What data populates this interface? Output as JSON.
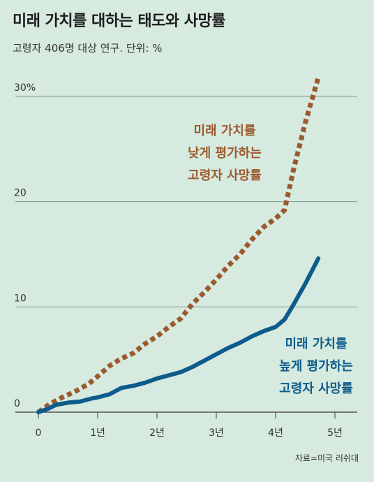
{
  "title": "미래 가치를 대하는 태도와 사망률",
  "subtitle": "고령자 406명 대상 연구. 단위: %",
  "source": "자료=미국 러쉬대",
  "colors": {
    "background": "#d6eadf",
    "low": "#9b5a2e",
    "high": "#0e5b8c",
    "grid": "#7f9a8d"
  },
  "chart_data": {
    "type": "line",
    "title": "미래 가치를 대하는 태도와 사망률",
    "subtitle": "고령자 406명 대상 연구. 단위: %",
    "xlabel": "",
    "ylabel": "",
    "xlim": [
      0,
      5.2
    ],
    "ylim": [
      0,
      31.5
    ],
    "x_ticks": [
      0,
      1,
      2,
      3,
      4,
      5
    ],
    "x_tick_labels": [
      "0",
      "1년",
      "2년",
      "3년",
      "4년",
      "5년"
    ],
    "y_ticks": [
      0,
      10,
      20,
      30
    ],
    "y_tick_labels": [
      "0",
      "10",
      "20",
      "30%"
    ],
    "grid": true,
    "series": [
      {
        "name": "미래 가치를 낮게 평가하는 고령자 사망률",
        "label_lines": [
          "미래 가치를",
          "낮게 평가하는",
          "고령자 사망률"
        ],
        "style": "dotted",
        "color": "#9b5a2e",
        "points": [
          [
            0,
            0
          ],
          [
            0.2,
            0.8
          ],
          [
            0.4,
            1.4
          ],
          [
            0.6,
            1.9
          ],
          [
            0.85,
            2.7
          ],
          [
            1.0,
            3.4
          ],
          [
            1.2,
            4.4
          ],
          [
            1.4,
            5.1
          ],
          [
            1.6,
            5.6
          ],
          [
            1.8,
            6.5
          ],
          [
            2.0,
            7.2
          ],
          [
            2.2,
            8.1
          ],
          [
            2.4,
            8.9
          ],
          [
            2.6,
            10.3
          ],
          [
            2.8,
            11.4
          ],
          [
            3.0,
            12.6
          ],
          [
            3.2,
            13.9
          ],
          [
            3.4,
            15.0
          ],
          [
            3.6,
            16.4
          ],
          [
            3.8,
            17.6
          ],
          [
            4.0,
            18.4
          ],
          [
            4.15,
            19.2
          ],
          [
            4.3,
            23.0
          ],
          [
            4.5,
            27.5
          ],
          [
            4.72,
            31.8
          ]
        ]
      },
      {
        "name": "미래 가치를 높게 평가하는 고령자 사망률",
        "label_lines": [
          "미래 가치를",
          "높게 평가하는",
          "고령자 사망률"
        ],
        "style": "solid",
        "color": "#0e5b8c",
        "points": [
          [
            0,
            0
          ],
          [
            0.15,
            0.3
          ],
          [
            0.3,
            0.7
          ],
          [
            0.5,
            0.9
          ],
          [
            0.7,
            1.0
          ],
          [
            0.9,
            1.3
          ],
          [
            1.0,
            1.4
          ],
          [
            1.2,
            1.7
          ],
          [
            1.4,
            2.3
          ],
          [
            1.6,
            2.5
          ],
          [
            1.8,
            2.8
          ],
          [
            2.0,
            3.2
          ],
          [
            2.2,
            3.5
          ],
          [
            2.4,
            3.8
          ],
          [
            2.6,
            4.3
          ],
          [
            2.8,
            4.9
          ],
          [
            3.0,
            5.5
          ],
          [
            3.2,
            6.1
          ],
          [
            3.4,
            6.6
          ],
          [
            3.6,
            7.2
          ],
          [
            3.8,
            7.7
          ],
          [
            4.0,
            8.1
          ],
          [
            4.15,
            8.8
          ],
          [
            4.3,
            10.2
          ],
          [
            4.5,
            12.2
          ],
          [
            4.72,
            14.6
          ]
        ]
      }
    ]
  }
}
